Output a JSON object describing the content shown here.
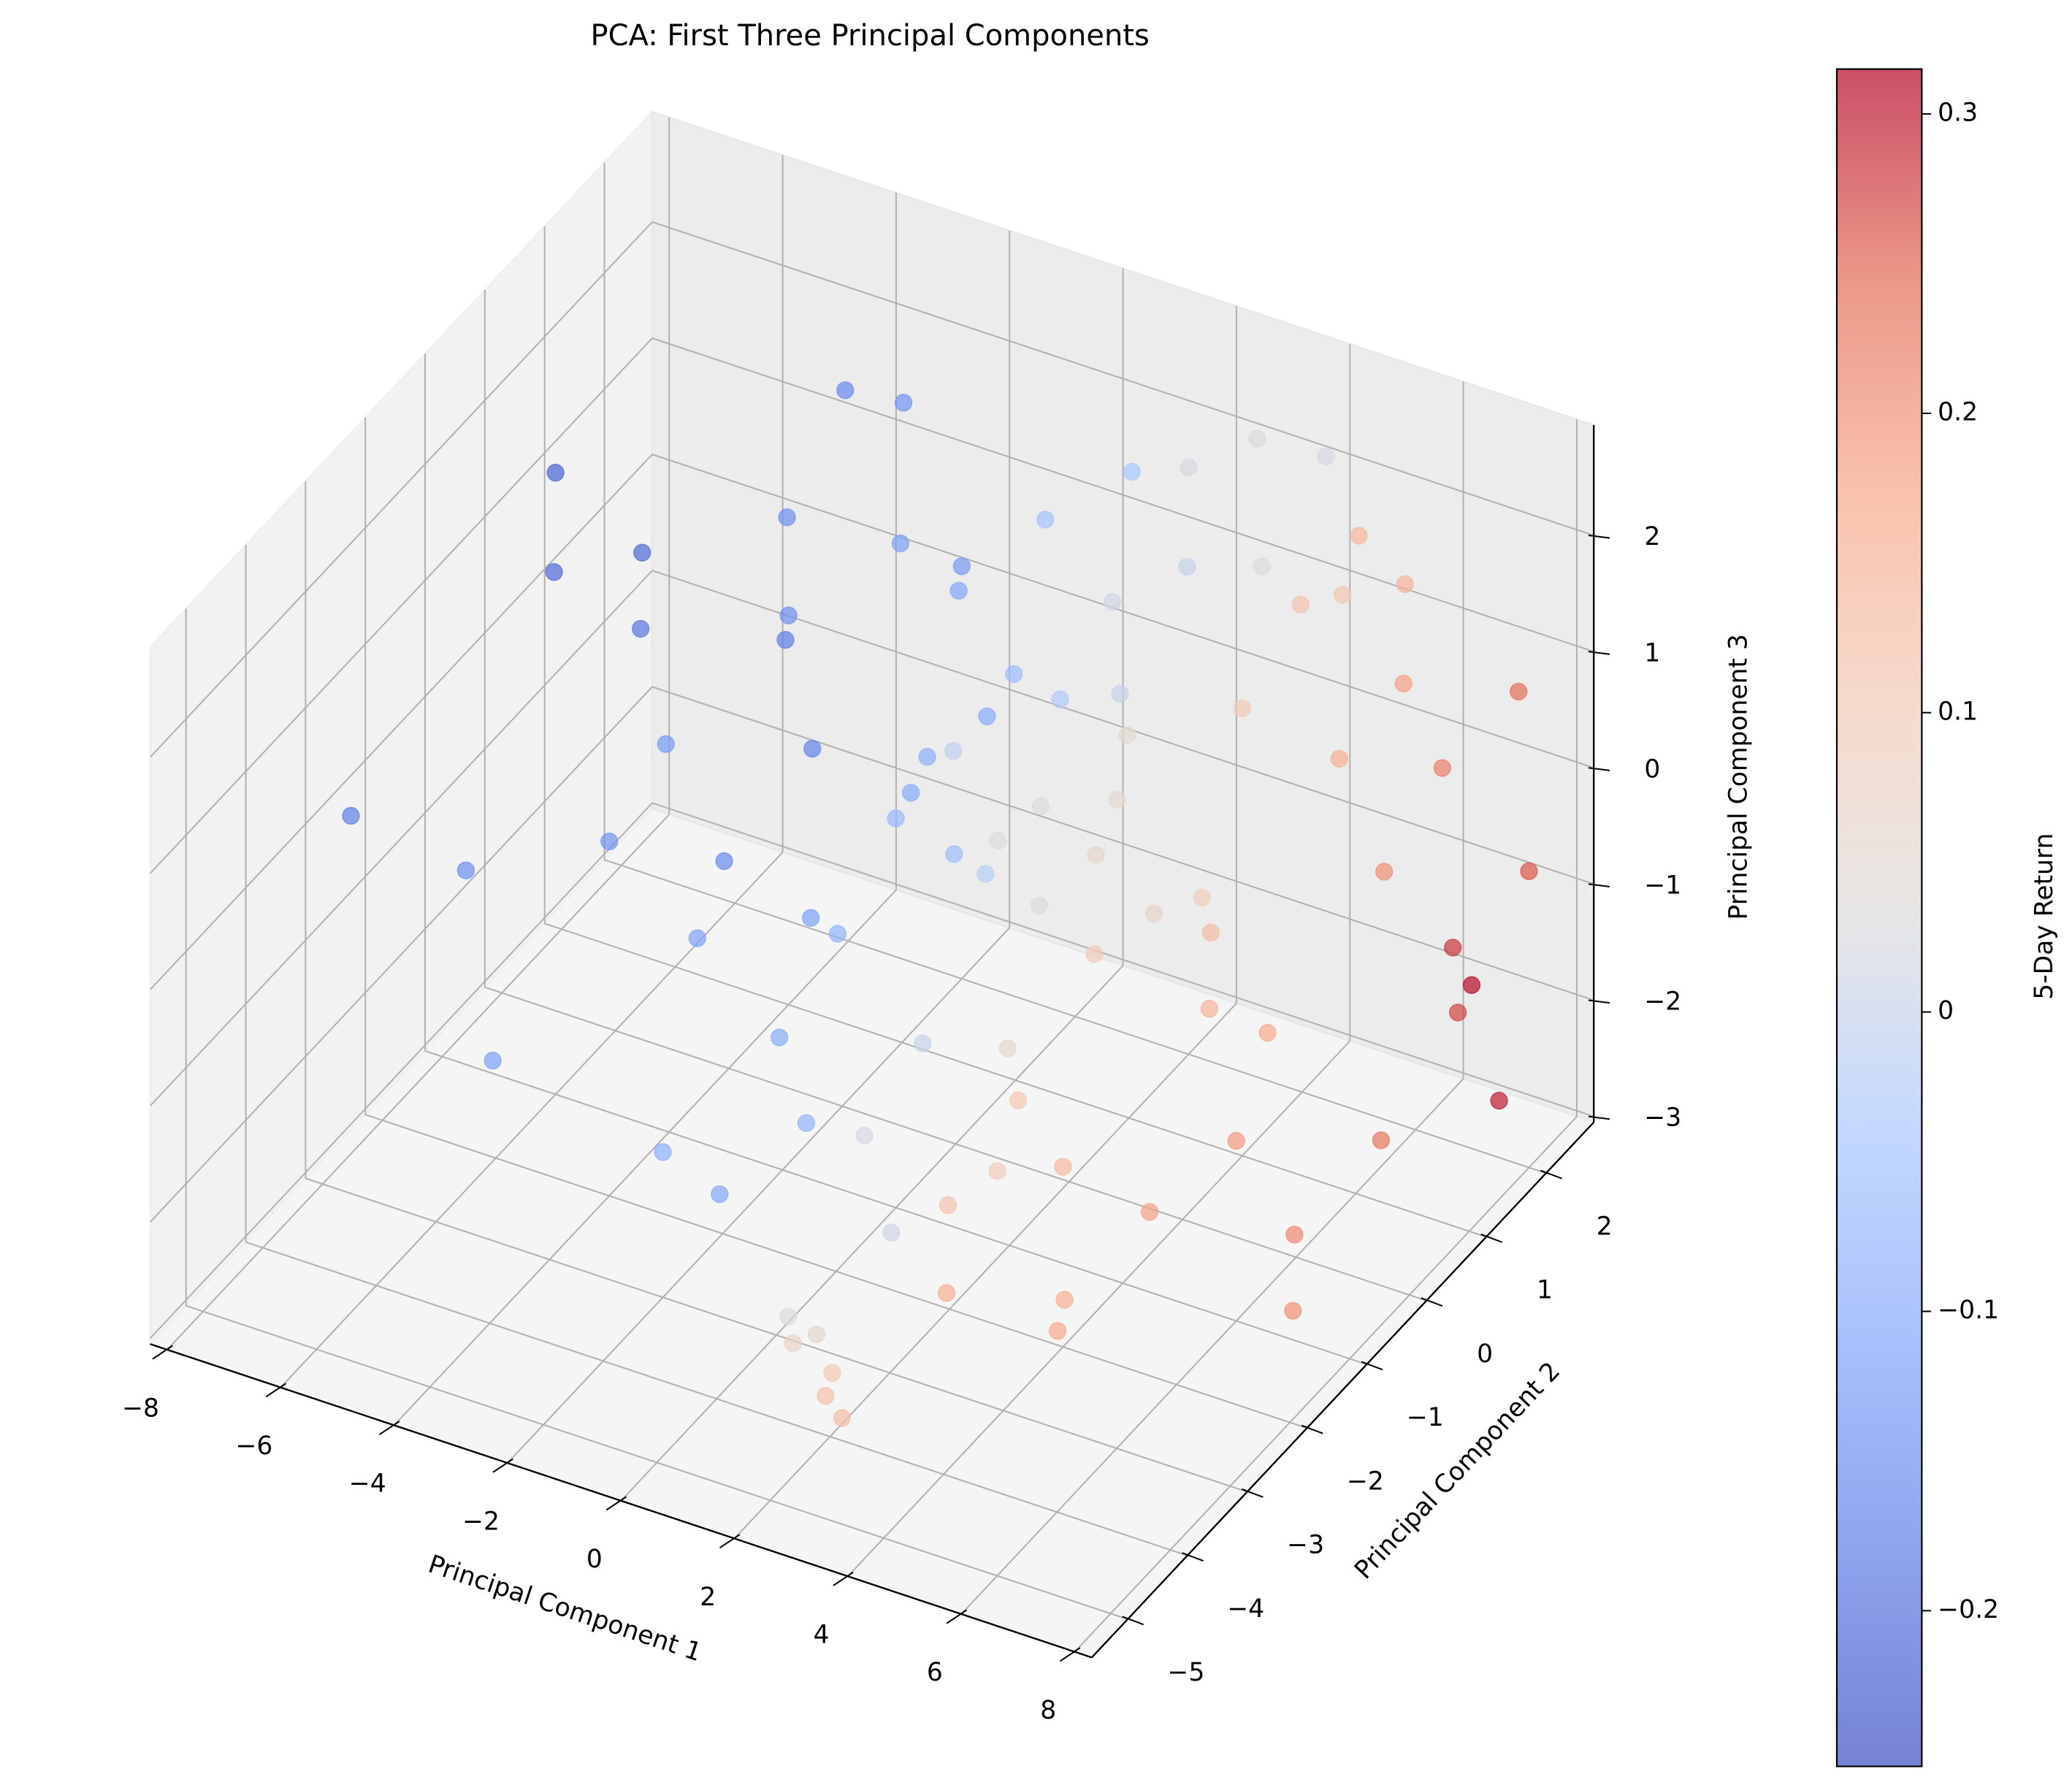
{
  "chart_data": {
    "type": "scatter3d",
    "title": "PCA: First Three Principal Components",
    "xlabel": "Principal Component 1",
    "ylabel": "Principal Component 2",
    "zlabel": "Principal Component 3",
    "colorbar_label": "5-Day Return",
    "colormap": "coolwarm",
    "alpha": 0.7,
    "grid": true,
    "xlim": [
      -8.3,
      8.3
    ],
    "ylim": [
      -5.6,
      2.8
    ],
    "zlim": [
      -3.05,
      2.95
    ],
    "clim": [
      -0.252,
      0.315
    ],
    "xticks": [
      {
        "value": -8,
        "label": "−8"
      },
      {
        "value": -6,
        "label": "−6"
      },
      {
        "value": -4,
        "label": "−4"
      },
      {
        "value": -2,
        "label": "−2"
      },
      0,
      2,
      4,
      6,
      8
    ],
    "yticks": [
      {
        "value": -5,
        "label": "−5"
      },
      {
        "value": -4,
        "label": "−4"
      },
      {
        "value": -3,
        "label": "−3"
      },
      {
        "value": -2,
        "label": "−2"
      },
      {
        "value": -1,
        "label": "−1"
      },
      0,
      1,
      2
    ],
    "zticks": [
      {
        "value": -3,
        "label": "−3"
      },
      {
        "value": -2,
        "label": "−2"
      },
      {
        "value": -1,
        "label": "−1"
      },
      0,
      1,
      2
    ],
    "cticks": [
      {
        "value": -0.2,
        "label": "−0.2"
      },
      {
        "value": -0.1,
        "label": "−0.1"
      },
      0.0,
      0.1,
      0.2,
      0.3
    ],
    "x": [
      -7.5,
      -6,
      -5.5,
      -5,
      -4.5,
      -6,
      -5,
      -4,
      -3.5,
      -3,
      -2.5,
      -3,
      -2,
      -2.5,
      -1.5,
      -1,
      -2,
      -1.5,
      -1,
      -0.5,
      0,
      -0.5,
      0.5,
      0,
      -1,
      1,
      -3,
      -4,
      -2,
      -1,
      0,
      -3.5,
      -0.5,
      0.5,
      1,
      1.5,
      2,
      2.5,
      1.5,
      2,
      1,
      2.5,
      3,
      3.5,
      0.5,
      1.5,
      3,
      2,
      3.5,
      1,
      0,
      2.5,
      4,
      0.8,
      1.8,
      4,
      4.5,
      5,
      3.5,
      4.5,
      3,
      5,
      5.5,
      6,
      4,
      2.5,
      3,
      5.5,
      6.5,
      6,
      3.5,
      4.5,
      5,
      2,
      5.5,
      7,
      7.5,
      7.5,
      8,
      7.2,
      7.8,
      7.5,
      8,
      6.5,
      7,
      0,
      0.6,
      0.4,
      1.3,
      1.5,
      2,
      3.5,
      3.8
    ],
    "y": [
      -3,
      -1,
      -1.5,
      -0.5,
      -1,
      -2.5,
      -3,
      -2,
      0.5,
      1,
      1.5,
      0,
      -0.5,
      -1.5,
      0.5,
      1,
      2,
      -1,
      -2,
      0,
      1.5,
      -1.5,
      0.5,
      -1,
      0.2,
      2,
      -2,
      1,
      -3,
      -3,
      -2.5,
      -1,
      1,
      -0.5,
      0.8,
      1.2,
      2,
      1.5,
      0,
      -0.5,
      -1.5,
      0.5,
      2.2,
      1.8,
      -2,
      -2.5,
      -0.5,
      0.8,
      0,
      1.8,
      0.5,
      -1.5,
      2.4,
      -0.8,
      -1,
      1,
      1.5,
      2,
      -1,
      0,
      -1.8,
      -0.5,
      1.2,
      1.8,
      -2,
      -2.5,
      -3,
      0,
      1,
      -1,
      0.8,
      2.2,
      -1.5,
      -1.2,
      2.3,
      1.5,
      2.3,
      1.2,
      2,
      1.8,
      1,
      0,
      1.5,
      -0.5,
      -1,
      -2.8,
      -2.9,
      -3.1,
      -3.3,
      -3.6,
      -3.8,
      -1.5,
      -1.9
    ],
    "z": [
      0.2,
      2.3,
      1.8,
      1.5,
      1.2,
      -0.3,
      -1.5,
      0,
      1.5,
      2.4,
      2.1,
      0.8,
      0.3,
      -0.2,
      1.6,
      1,
      0.5,
      -0.8,
      -1.2,
      0.2,
      1.5,
      -0.5,
      0.8,
      0.3,
      -0.3,
      1.8,
      1,
      0.3,
      -1.8,
      -2,
      -1.5,
      -1.3,
      0,
      -0.2,
      0.5,
      1.2,
      2,
      1.5,
      0.1,
      -0.4,
      -1.2,
      0.6,
      2.3,
      1.5,
      -1.8,
      -2.2,
      0.2,
      -0.2,
      -0.5,
      0,
      -1,
      -1,
      2.2,
      0.9,
      0.4,
      0.8,
      1.5,
      1.9,
      -0.3,
      -0.5,
      -1.2,
      -0.8,
      0.5,
      0.9,
      -1.5,
      -1.8,
      -2.2,
      -1.2,
      -0.2,
      -1.5,
      -0.8,
      1.2,
      -2,
      -2.3,
      1.4,
      0.5,
      0.8,
      -0.8,
      -0.5,
      -1.5,
      -1.2,
      -1.8,
      -2.2,
      -2.5,
      -2.8,
      -3,
      -3,
      -3,
      -3,
      -3,
      -3,
      -3,
      -3
    ],
    "color_values": [
      -0.18,
      -0.22,
      -0.21,
      -0.21,
      -0.19,
      -0.15,
      -0.12,
      -0.14,
      -0.15,
      -0.16,
      -0.14,
      -0.18,
      -0.17,
      -0.16,
      -0.12,
      -0.11,
      -0.13,
      -0.12,
      -0.1,
      -0.09,
      -0.05,
      -0.08,
      -0.06,
      -0.07,
      -0.1,
      -0.04,
      -0.13,
      -0.15,
      -0.09,
      -0.11,
      -0.08,
      -0.12,
      -0.1,
      -0.06,
      -0.03,
      0.01,
      0.02,
      0.0,
      0.03,
      0.04,
      0.0,
      0.05,
      0.03,
      0.04,
      0.02,
      0.01,
      0.06,
      0.05,
      0.07,
      0.0,
      -0.02,
      0.06,
      0.02,
      -0.01,
      0.03,
      0.1,
      0.12,
      0.14,
      0.1,
      0.13,
      0.11,
      0.15,
      0.16,
      0.18,
      0.14,
      0.12,
      0.16,
      0.17,
      0.2,
      0.19,
      0.09,
      0.11,
      0.18,
      0.1,
      0.15,
      0.22,
      0.24,
      0.28,
      0.26,
      0.31,
      0.27,
      0.23,
      0.3,
      0.21,
      0.2,
      0.03,
      0.06,
      0.07,
      0.11,
      0.12,
      0.13,
      0.16,
      0.17
    ]
  }
}
